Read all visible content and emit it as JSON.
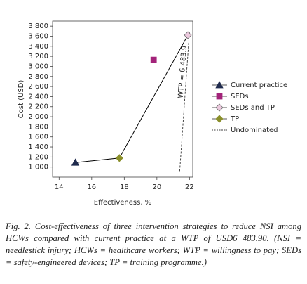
{
  "chart_data": {
    "type": "scatter",
    "xlabel": "Effectiveness, %",
    "ylabel": "Cost (USD)",
    "xlim": [
      13.6,
      22.2
    ],
    "xticks": [
      14,
      16,
      18,
      20,
      22
    ],
    "ylim": [
      800,
      3900
    ],
    "yticks": [
      {
        "value": 1000,
        "label": "1 000"
      },
      {
        "value": 1200,
        "label": "1 200"
      },
      {
        "value": 1400,
        "label": "1 400"
      },
      {
        "value": 1600,
        "label": "1 600"
      },
      {
        "value": 1800,
        "label": "1 800"
      },
      {
        "value": 2000,
        "label": "2 000"
      },
      {
        "value": 2200,
        "label": "2 200"
      },
      {
        "value": 2400,
        "label": "2 400"
      },
      {
        "value": 2600,
        "label": "2 600"
      },
      {
        "value": 2800,
        "label": "2 800"
      },
      {
        "value": 3000,
        "label": "3 000"
      },
      {
        "value": 3200,
        "label": "3 200"
      },
      {
        "value": 3400,
        "label": "3 400"
      },
      {
        "value": 3600,
        "label": "3 600"
      },
      {
        "value": 3800,
        "label": "3 800"
      }
    ],
    "legend": "right",
    "series": [
      {
        "name": "Current practice",
        "marker": "triangle",
        "color": "#1f2a4d",
        "edgecolor": "#1f2a4d",
        "x": [
          15.0
        ],
        "values": [
          1090
        ]
      },
      {
        "name": "SEDs",
        "marker": "square",
        "color": "#a3237a",
        "edgecolor": "#a3237a",
        "x": [
          19.8
        ],
        "values": [
          3130
        ]
      },
      {
        "name": "SEDs and TP",
        "marker": "diamond",
        "color": "#ecc9de",
        "edgecolor": "#6b6b6b",
        "x": [
          21.9
        ],
        "values": [
          3620
        ]
      },
      {
        "name": "TP",
        "marker": "diamond",
        "color": "#8a8f2a",
        "edgecolor": "#8a8f2a",
        "x": [
          17.7
        ],
        "values": [
          1180
        ]
      },
      {
        "name": "Undominated",
        "marker": "line",
        "color": "#000000",
        "x": [
          15.0,
          17.7,
          21.9
        ],
        "values": [
          1090,
          1180,
          3620
        ]
      }
    ],
    "annotations": [
      {
        "text": "WTP = 6 483.9",
        "x": [
          21.4,
          22.0
        ],
        "y": [
          920,
          3700
        ]
      }
    ]
  },
  "caption": "Fig. 2. Cost-effectiveness of three intervention strategies to reduce NSI among HCWs compared with current practice at a WTP of USD6 483.90. (NSI = needlestick injury; HCWs = healthcare workers; WTP = willingness to pay; SEDs = safety-engineered devices; TP = training programme.)"
}
